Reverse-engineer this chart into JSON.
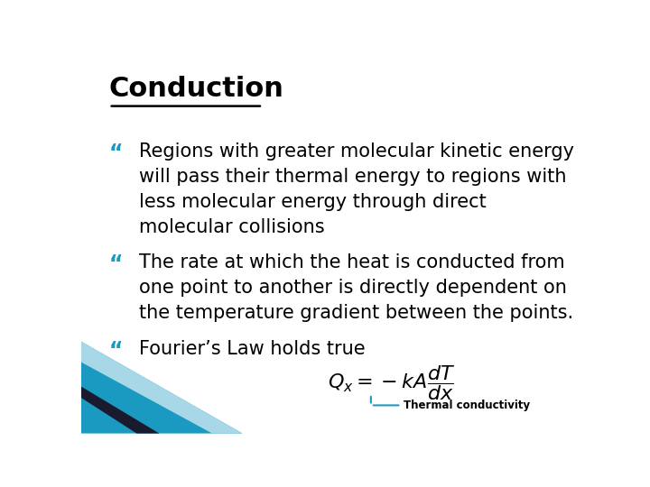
{
  "title": "Conduction",
  "title_color": "#000000",
  "background_color": "#ffffff",
  "bullet_color": "#1a9ac0",
  "bullet_char": "“",
  "bullet1_lines": [
    "Regions with greater molecular kinetic energy",
    "will pass their thermal energy to regions with",
    "less molecular energy through direct",
    "molecular collisions"
  ],
  "bullet2_lines": [
    "The rate at which the heat is conducted from",
    "one point to another is directly dependent on",
    "the temperature gradient between the points."
  ],
  "bullet3_line": "Fourier’s Law holds true",
  "formula_label": "Thermal conductivity",
  "formula_label_color": "#000000",
  "arrow_color": "#1a9ac0",
  "decorative_teal": "#1a9ac0",
  "decorative_light": "#a8d8e8",
  "decorative_dark": "#1a1a2e",
  "body_text_color": "#000000",
  "body_fontsize": 15,
  "title_fontsize": 22
}
